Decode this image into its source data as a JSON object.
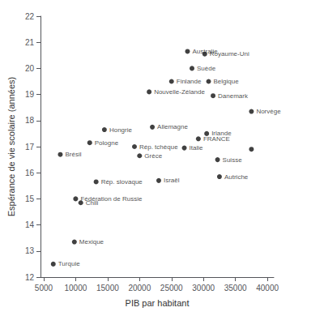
{
  "chart_data": {
    "type": "scatter",
    "xlabel": "PIB par habitant",
    "ylabel": "Espérance de vie scolaire (années)",
    "x": [
      6500,
      9800,
      7600,
      10000,
      10800,
      12200,
      13200,
      14500,
      20000,
      19200,
      21500,
      22000,
      23000,
      27000,
      25000,
      27500,
      28200,
      30500,
      29200,
      30200,
      30800,
      32200,
      32500,
      31500,
      37500,
      37500
    ],
    "values": [
      12.5,
      13.35,
      16.7,
      15.0,
      14.85,
      17.15,
      15.65,
      17.65,
      16.65,
      17.0,
      19.1,
      17.75,
      15.7,
      16.95,
      19.5,
      20.65,
      20.0,
      17.5,
      17.3,
      20.55,
      19.5,
      16.5,
      15.85,
      18.95,
      18.35,
      16.9
    ],
    "labels": [
      "Turquie",
      "Mexique",
      "Brésil",
      "Fédération de Russie",
      "Chili",
      "Pologne",
      "Rép. slovaque",
      "Hongrie",
      "Grèce",
      "Rép. tchèque",
      "Nouvelle-Zélande",
      "Allemagne",
      "Israël",
      "Italie",
      "Finlande",
      "Australie",
      "Suède",
      "Irlande",
      "FRANCE",
      "Royaume-Uni",
      "Belgique",
      "Suisse",
      "Autriche",
      "Danemark",
      "Norvège",
      null
    ],
    "xlim": [
      4500,
      41000
    ],
    "ylim": [
      12,
      22
    ],
    "xticks": [
      5000,
      10000,
      15000,
      20000,
      25000,
      30000,
      35000,
      40000
    ],
    "yticks": [
      12,
      13,
      14,
      15,
      16,
      17,
      18,
      19,
      20,
      21,
      22
    ],
    "color": "#111111",
    "marker": "circle",
    "grid": false
  }
}
